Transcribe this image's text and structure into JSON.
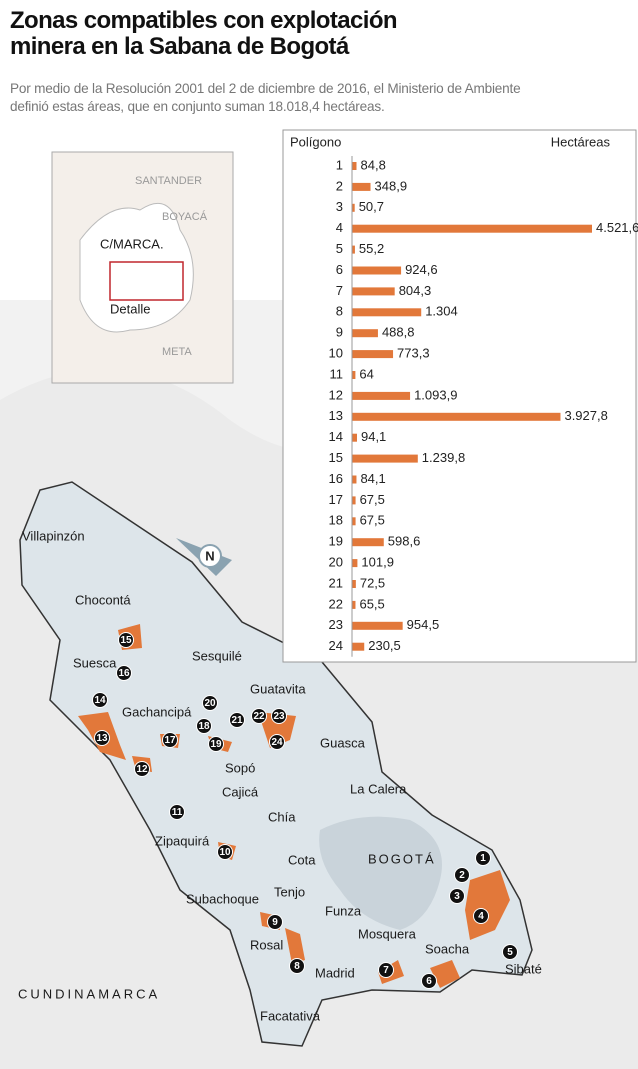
{
  "title": "Zonas compatibles con explotación minera en la Sabana de Bogotá",
  "subtitle": "Por medio de la Resolución 2001 del 2 de diciembre de 2016, el Ministerio de Ambiente definió estas áreas, que en conjunto suman 18.018,4 hectáreas.",
  "inset": {
    "labels": [
      "SANTANDER",
      "BOYACÁ",
      "C/MARCA.",
      "Detalle",
      "META"
    ]
  },
  "map": {
    "places": [
      "Villapinzón",
      "Chocontá",
      "Suesca",
      "Sesquilé",
      "Gachancipá",
      "Guatavita",
      "Guasca",
      "Sopó",
      "Cajicá",
      "La Calera",
      "Chía",
      "Zipaquirá",
      "Cota",
      "BOGOTÁ",
      "Subachoque",
      "Tenjo",
      "Funza",
      "Mosquera",
      "Soacha",
      "Rosal",
      "Sibaté",
      "Madrid",
      "Facatativá",
      "CUNDINAMARCA"
    ]
  },
  "chart_data": {
    "type": "hbar",
    "x_label": "Hectáreas",
    "y_label": "Polígono",
    "color": "#e2783a",
    "categories": [
      "1",
      "2",
      "3",
      "4",
      "5",
      "6",
      "7",
      "8",
      "9",
      "10",
      "11",
      "12",
      "13",
      "14",
      "15",
      "16",
      "17",
      "18",
      "19",
      "20",
      "21",
      "22",
      "23",
      "24"
    ],
    "values": [
      84.8,
      348.9,
      50.7,
      4521.6,
      55.2,
      924.6,
      804.3,
      1304,
      488.8,
      773.3,
      64,
      1093.9,
      3927.8,
      94.1,
      1239.8,
      84.1,
      67.5,
      67.5,
      598.6,
      101.9,
      72.5,
      65.5,
      954.5,
      230.5
    ],
    "value_labels": [
      "84,8",
      "348,9",
      "50,7",
      "4.521,6",
      "55,2",
      "924,6",
      "804,3",
      "1.304",
      "488,8",
      "773,3",
      "64",
      "1.093,9",
      "3.927,8",
      "94,1",
      "1.239,8",
      "84,1",
      "67,5",
      "67,5",
      "598,6",
      "101,9",
      "72,5",
      "65,5",
      "954,5",
      "230,5"
    ]
  }
}
